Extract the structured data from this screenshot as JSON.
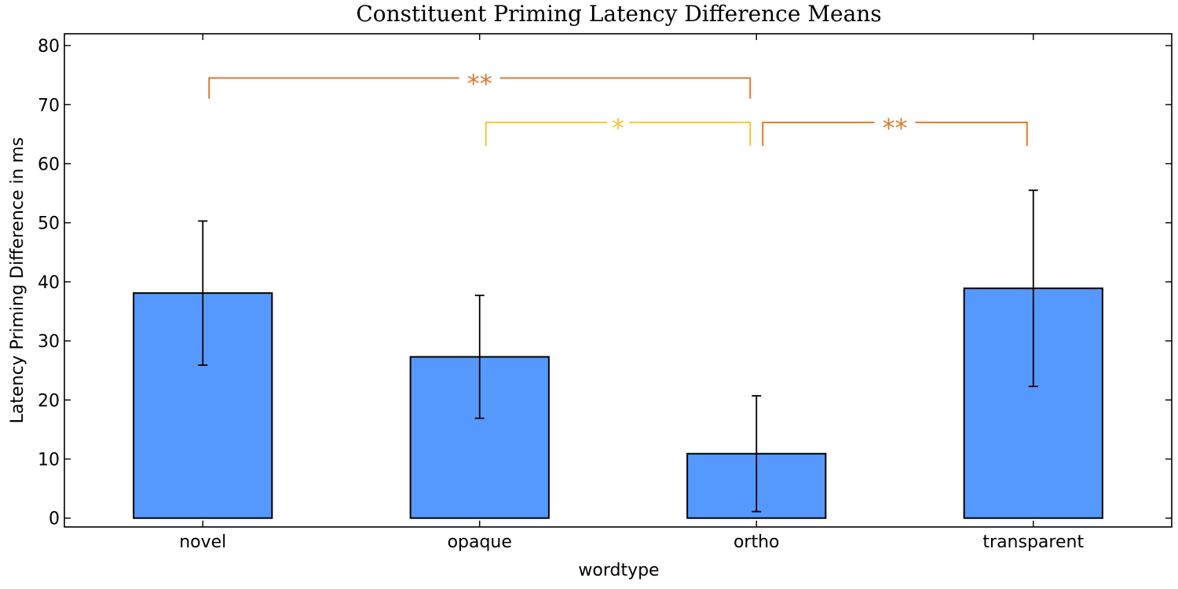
{
  "chart_data": {
    "type": "bar",
    "title": "Constituent Priming Latency Difference Means",
    "xlabel": "wordtype",
    "ylabel": "Latency Priming Difference in ms",
    "categories": [
      "novel",
      "opaque",
      "ortho",
      "transparent"
    ],
    "values": [
      38.1,
      27.3,
      10.9,
      38.9
    ],
    "error_low": [
      25.9,
      16.9,
      1.1,
      22.3
    ],
    "error_high": [
      50.3,
      37.7,
      20.7,
      55.5
    ],
    "ylim": [
      -1.5,
      82
    ],
    "yticks": [
      0,
      10,
      20,
      30,
      40,
      50,
      60,
      70,
      80
    ],
    "grid": false,
    "colors": {
      "bar": "#5599ff",
      "edge": "#000000",
      "sig_strong": "#e07a2e",
      "sig_weak": "#f5c733"
    },
    "significance": [
      {
        "from": "novel",
        "to": "ortho",
        "label": "**",
        "level": 74.5,
        "drop": 71,
        "color": "#e07a2e"
      },
      {
        "from": "opaque",
        "to": "ortho",
        "label": "*",
        "level": 67,
        "drop": 63,
        "color": "#f5c733"
      },
      {
        "from": "ortho",
        "to": "transparent",
        "label": "**",
        "level": 67,
        "drop": 63,
        "color": "#e07a2e"
      }
    ]
  }
}
